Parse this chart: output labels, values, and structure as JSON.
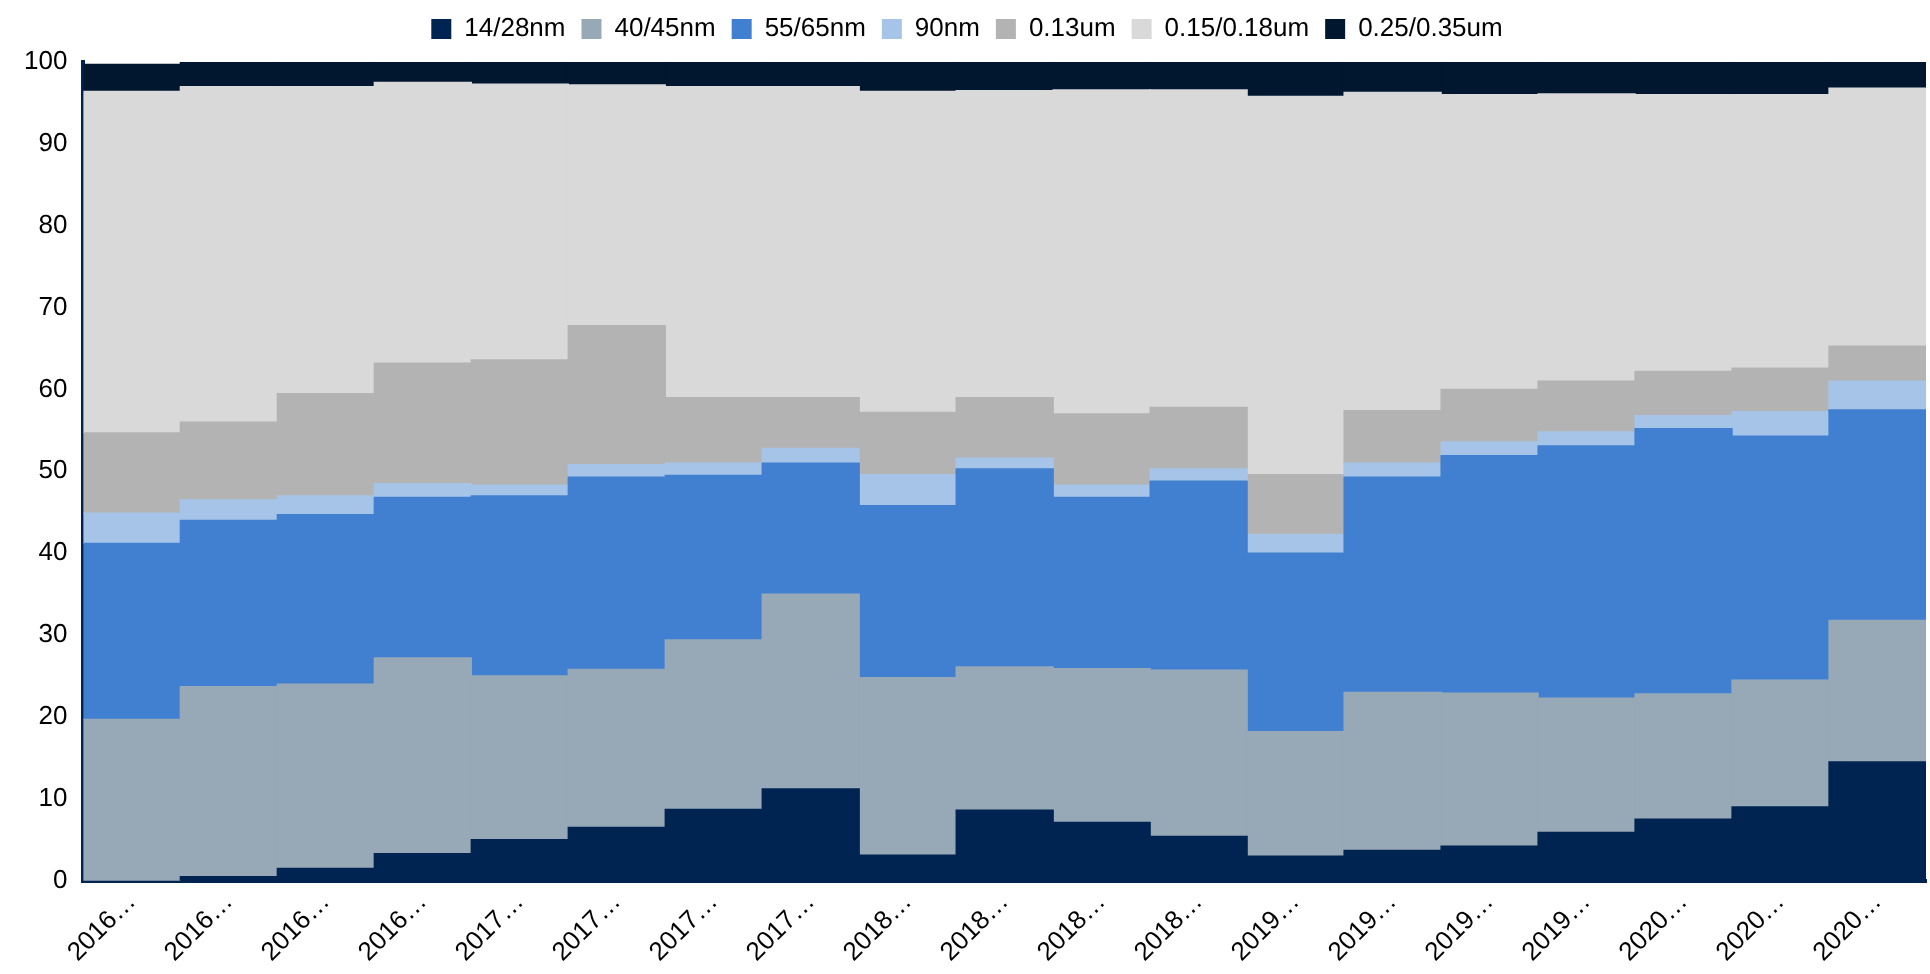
{
  "chart_data": {
    "type": "bar",
    "stacked": true,
    "legend": "top",
    "grid": false,
    "categories": [
      "2016…",
      "2016…",
      "2016…",
      "2016…",
      "2017…",
      "2017…",
      "2017…",
      "2017…",
      "2018…",
      "2018…",
      "2018…",
      "2018…",
      "2019…",
      "2019…",
      "2019…",
      "2019…",
      "2020…",
      "2020…",
      "2020…"
    ],
    "ylim": [
      0,
      100
    ],
    "yticks": [
      0,
      10,
      20,
      30,
      40,
      50,
      60,
      70,
      80,
      90,
      100
    ],
    "series": [
      {
        "name": "14/28nm",
        "color": "#002451",
        "values": [
          null,
          0.5,
          1.5,
          3.3,
          5,
          6.5,
          8.7,
          11.2,
          3.1,
          8.6,
          7.1,
          5.4,
          3,
          3.7,
          4.2,
          5.9,
          7.5,
          9,
          14.5
        ]
      },
      {
        "name": "40/45nm",
        "color": "#97a8b7",
        "values": [
          19.7,
          23.2,
          22.5,
          23.9,
          20,
          19.3,
          20.7,
          23.8,
          21.7,
          17.5,
          18.8,
          20.3,
          15.2,
          19.3,
          18.7,
          16.4,
          15.3,
          15.5,
          17.3
        ]
      },
      {
        "name": "55/65nm",
        "color": "#4180d0",
        "values": [
          21.5,
          20.3,
          20.7,
          19.6,
          22,
          23.5,
          20.1,
          16,
          21,
          24.2,
          20.9,
          23.1,
          21.8,
          26.3,
          29,
          30.8,
          32.4,
          29.8,
          25.7
        ]
      },
      {
        "name": "90nm",
        "color": "#a6c4e8",
        "values": [
          3.7,
          2.5,
          2.3,
          1.7,
          1.3,
          1.5,
          1.5,
          1.8,
          3.8,
          1.3,
          1.5,
          1.5,
          2.3,
          1.7,
          1.7,
          1.7,
          1.6,
          3,
          3.5
        ]
      },
      {
        "name": "0.13um",
        "color": "#b3b3b3",
        "values": [
          9.8,
          9.5,
          12.5,
          14.7,
          15.3,
          17,
          8,
          6.2,
          7.6,
          7.4,
          8.7,
          7.5,
          7.3,
          6.4,
          6.4,
          6.2,
          5.4,
          5.3,
          4.3
        ]
      },
      {
        "name": "0.15/0.18um",
        "color": "#d9d9d9",
        "values": [
          41.7,
          41,
          37.5,
          34.3,
          33.7,
          29.4,
          38,
          38,
          39.2,
          37.5,
          39.6,
          38.8,
          46.2,
          38.9,
          36,
          35.1,
          33.8,
          33.4,
          31.5
        ]
      },
      {
        "name": "0.25/0.35um",
        "color": "#00172f",
        "values": [
          3.3,
          3,
          3,
          2.5,
          2.7,
          2.8,
          3,
          3,
          3.6,
          3.5,
          3.4,
          3.4,
          4.2,
          3.7,
          4,
          3.9,
          4,
          4,
          3.2
        ]
      }
    ]
  }
}
